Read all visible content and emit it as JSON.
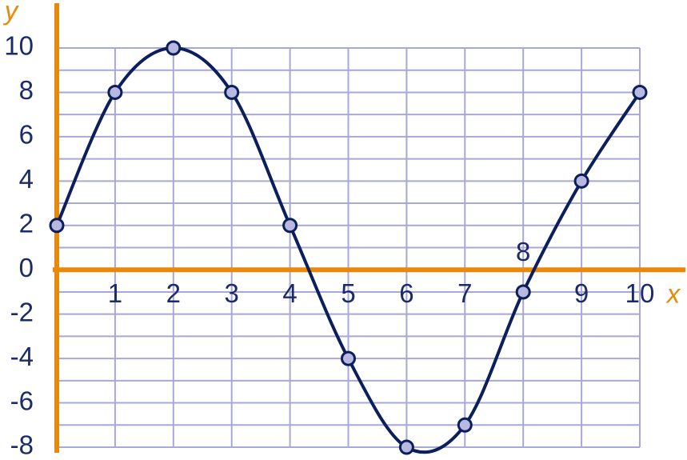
{
  "chart_data": {
    "type": "line",
    "x_label": "x",
    "y_label": "y",
    "x": [
      0,
      1,
      2,
      3,
      4,
      5,
      6,
      7,
      8,
      9,
      10
    ],
    "series": [
      {
        "color": "#0b1f5c",
        "values": [
          2,
          8,
          10,
          8,
          2,
          -4,
          -8,
          -7,
          -1,
          4,
          8
        ]
      }
    ],
    "xlim": [
      0,
      10
    ],
    "ylim": [
      -8,
      10
    ],
    "xticks": [
      1,
      2,
      3,
      4,
      5,
      6,
      7,
      8,
      9,
      10
    ],
    "yticks": [
      -8,
      -6,
      -4,
      -2,
      0,
      2,
      4,
      6,
      8,
      10
    ],
    "yminorticks": [
      -7,
      -5,
      -3,
      -1,
      1,
      3,
      5,
      7,
      9
    ],
    "grid": true,
    "grid_color": "#a8a8d8",
    "axis_color": "#e8890c",
    "marker_fill": "#b8b8e0"
  }
}
